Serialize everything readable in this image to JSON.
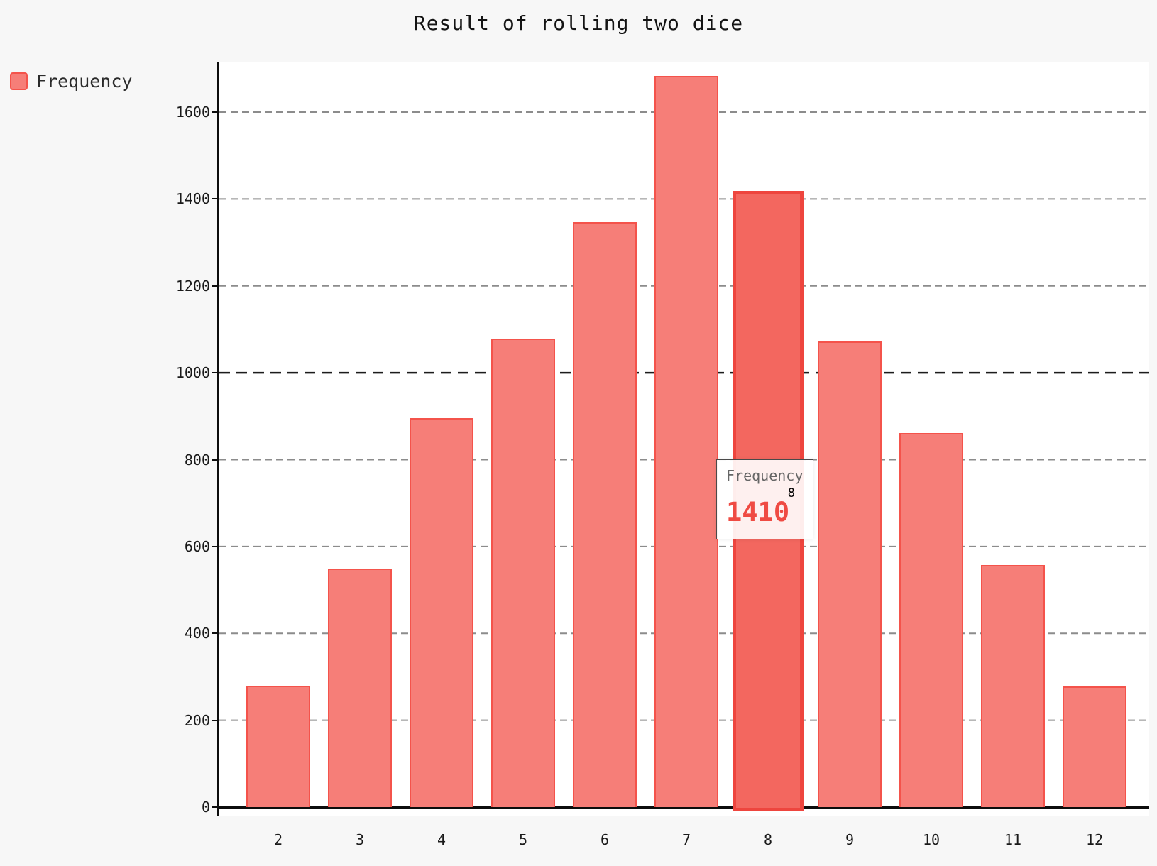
{
  "title": "Result of rolling two dice",
  "legend": {
    "label": "Frequency"
  },
  "tooltip": {
    "series": "Frequency",
    "category": "8",
    "value": "1410"
  },
  "colors": {
    "page_background": "#f7f7f7",
    "plot_background": "#ffffff",
    "bar_fill": "#f67e78",
    "bar_border": "#f4534b",
    "highlight_fill": "#f3675f",
    "highlight_border": "#ee453e",
    "gridline": "#8c8c8c",
    "gridline_emphasis": "#1c1c1c",
    "axis": "#0d0d0d",
    "tooltip_value": "#ef4b43"
  },
  "chart_data": {
    "type": "bar",
    "title": "Result of rolling two dice",
    "xlabel": "",
    "ylabel": "",
    "categories": [
      "2",
      "3",
      "4",
      "5",
      "6",
      "7",
      "8",
      "9",
      "10",
      "11",
      "12"
    ],
    "series": [
      {
        "name": "Frequency",
        "values": [
          280,
          549,
          896,
          1079,
          1347,
          1683,
          1410,
          1072,
          861,
          557,
          278
        ]
      }
    ],
    "ylim": [
      0,
      1715
    ],
    "yticks": [
      0,
      200,
      400,
      600,
      800,
      1000,
      1200,
      1400,
      1600
    ],
    "emphasized_gridline": 1000,
    "grid": true,
    "legend_position": "top-left",
    "highlight": {
      "category": "8",
      "value": 1410
    }
  }
}
